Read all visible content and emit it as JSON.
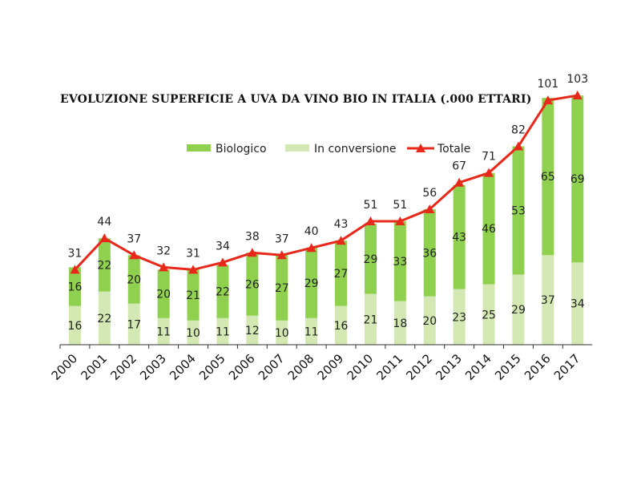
{
  "title": "EVOLUZIONE SUPERFICIE A UVA DA VINO BIO IN ITALIA (.000 ETTARI)",
  "colors": {
    "biologico": "#8fd14f",
    "conversione": "#d3e8b3",
    "totale": "#e8281a",
    "axis": "#333333"
  },
  "chart_data": {
    "type": "bar",
    "stacked": true,
    "categories": [
      "2000",
      "2001",
      "2002",
      "2003",
      "2004",
      "2005",
      "2006",
      "2007",
      "2008",
      "2009",
      "2010",
      "2011",
      "2012",
      "2013",
      "2014",
      "2015",
      "2016",
      "2017"
    ],
    "series": [
      {
        "name": "In conversione",
        "values": [
          16,
          22,
          17,
          11,
          10,
          11,
          12,
          10,
          11,
          16,
          21,
          18,
          20,
          23,
          25,
          29,
          37,
          34
        ]
      },
      {
        "name": "Biologico",
        "values": [
          16,
          22,
          20,
          20,
          21,
          22,
          26,
          27,
          29,
          27,
          29,
          33,
          36,
          43,
          46,
          53,
          65,
          69
        ]
      },
      {
        "name": "Totale",
        "type": "line",
        "values": [
          31,
          44,
          37,
          32,
          31,
          34,
          38,
          37,
          40,
          43,
          51,
          51,
          56,
          67,
          71,
          82,
          101,
          103
        ]
      }
    ],
    "ylim": [
      0,
      106
    ],
    "grid": false,
    "legend": "top-right"
  }
}
